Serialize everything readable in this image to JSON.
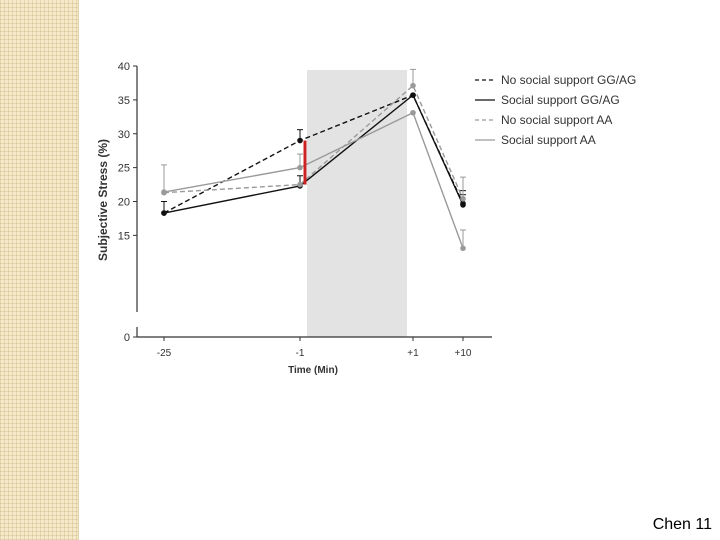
{
  "slide": {
    "footer": "Chen 11"
  },
  "colors": {
    "shade": "#e3e3e3",
    "black": "#111111",
    "gray": "#9a9a9a",
    "highlight": "#cc2222"
  },
  "chart_data": {
    "type": "line",
    "title": "",
    "xlabel": "Time (Min)",
    "ylabel": "Subjective Stress (%)",
    "categories": [
      "-25",
      "-1",
      "+1",
      "+10"
    ],
    "ylim": [
      0,
      40
    ],
    "yticks": [
      "0",
      "15",
      "20",
      "25",
      "30",
      "35",
      "40"
    ],
    "axis_break": "between 0 and 15",
    "shaded_region": {
      "from": "-1",
      "to": "+1"
    },
    "highlight_bar": {
      "category": "-1",
      "from": 22.5,
      "to": 29
    },
    "legend_position": "top-right",
    "series": [
      {
        "name": "No social support GG/AG",
        "values": [
          18.3,
          29,
          35.7,
          19.7
        ],
        "color": "#111111",
        "dash": "dashed",
        "errors_upper": [
          null,
          30.6,
          null,
          21.6
        ]
      },
      {
        "name": "Social support GG/AG",
        "values": [
          18.3,
          22.3,
          35.7,
          19.5
        ],
        "color": "#111111",
        "dash": "solid",
        "errors_upper": [
          20,
          23.8,
          null,
          21
        ]
      },
      {
        "name": "No social support AA",
        "values": [
          21.3,
          22.5,
          37.1,
          20.4
        ],
        "color": "#9a9a9a",
        "dash": "dashed",
        "errors_upper": [
          null,
          null,
          39.5,
          23.6
        ]
      },
      {
        "name": "Social support AA",
        "values": [
          21.4,
          25,
          33.1,
          13.1
        ],
        "color": "#9a9a9a",
        "dash": "solid",
        "errors_upper": [
          25.4,
          27,
          null,
          15.8
        ]
      }
    ]
  }
}
